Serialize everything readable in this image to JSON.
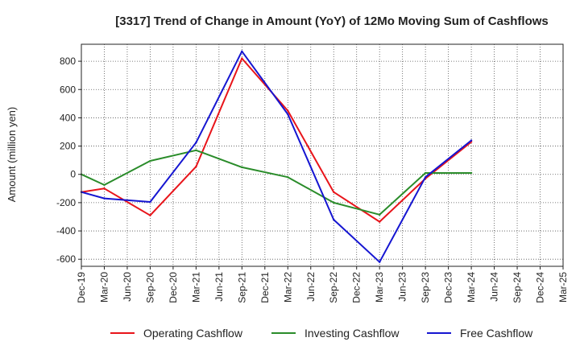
{
  "chart_data": {
    "type": "line",
    "title": "[3317]  Trend of Change in Amount (YoY) of 12Mo Moving Sum of Cashflows",
    "xlabel": "",
    "ylabel": "Amount (million yen)",
    "ylim": [
      -650,
      920
    ],
    "yticks": [
      -600,
      -400,
      -200,
      0,
      200,
      400,
      600,
      800
    ],
    "categories": [
      "Dec-19",
      "Mar-20",
      "Jun-20",
      "Sep-20",
      "Dec-20",
      "Mar-21",
      "Jun-21",
      "Sep-21",
      "Dec-21",
      "Mar-22",
      "Jun-22",
      "Sep-22",
      "Dec-22",
      "Mar-23",
      "Jun-23",
      "Sep-23",
      "Dec-23",
      "Mar-24",
      "Jun-24",
      "Sep-24",
      "Dec-24",
      "Mar-25"
    ],
    "grid": true,
    "legend_position": "bottom",
    "series": [
      {
        "name": "Operating Cashflow",
        "color": "#e8141a",
        "values": [
          -125,
          -100,
          null,
          -290,
          null,
          55,
          null,
          820,
          null,
          450,
          null,
          -125,
          null,
          -335,
          null,
          -30,
          null,
          230,
          null,
          null,
          null,
          null
        ]
      },
      {
        "name": "Investing Cashflow",
        "color": "#2a8c2a",
        "values": [
          0,
          -75,
          null,
          95,
          null,
          170,
          null,
          50,
          null,
          -20,
          null,
          -200,
          null,
          -285,
          null,
          10,
          null,
          10,
          null,
          null,
          null,
          null
        ]
      },
      {
        "name": "Free Cashflow",
        "color": "#1515d1",
        "values": [
          -125,
          -170,
          null,
          -195,
          null,
          225,
          null,
          870,
          null,
          425,
          null,
          -320,
          null,
          -620,
          null,
          -20,
          null,
          240,
          null,
          null,
          null,
          null
        ]
      }
    ]
  }
}
